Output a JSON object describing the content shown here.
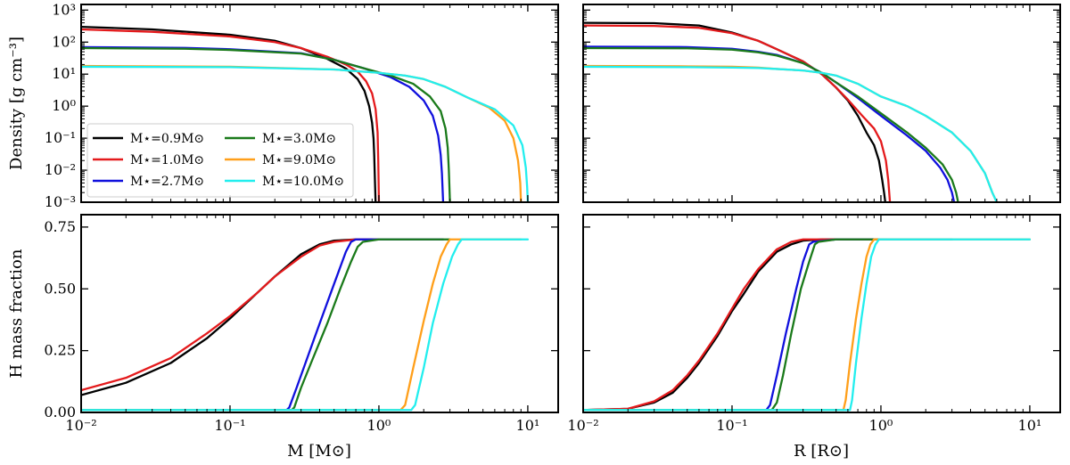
{
  "chart_data": {
    "type": "line",
    "legend": {
      "placement": "lower-left of top-left panel",
      "entries": [
        {
          "text": "M⋆=0.9M⊙",
          "color": "#000000"
        },
        {
          "text": "M⋆=1.0M⊙",
          "color": "#e41a1c"
        },
        {
          "text": "M⋆=2.7M⊙",
          "color": "#1010dd"
        },
        {
          "text": "M⋆=3.0M⊙",
          "color": "#1a7a1a"
        },
        {
          "text": "M⋆=9.0M⊙",
          "color": "#ff9f1a"
        },
        {
          "text": "M⋆=10.0M⊙",
          "color": "#22eeee"
        }
      ]
    },
    "x_axes": [
      {
        "label": "M [M⊙]",
        "scale": "log",
        "xlim": [
          0.01,
          16
        ],
        "tick_labels": [
          "10⁻²",
          "10⁻¹",
          "10⁰",
          "10¹"
        ]
      },
      {
        "label": "R [R⊙]",
        "scale": "log",
        "xlim": [
          0.01,
          16
        ],
        "tick_labels": [
          "10⁻²",
          "10⁻¹",
          "10⁰",
          "10¹"
        ]
      }
    ],
    "y_axes": [
      {
        "label": "Density [g cm⁻³]",
        "scale": "log",
        "ylim": [
          0.001,
          1500
        ],
        "tick_labels": [
          "10³",
          "10²",
          "10¹",
          "10⁰",
          "10⁻¹",
          "10⁻²",
          "10⁻³"
        ]
      },
      {
        "label": "H mass fraction",
        "scale": "linear",
        "ylim": [
          0,
          0.8
        ],
        "tick_labels": [
          "0.75",
          "0.50",
          "0.25",
          "0.00"
        ]
      }
    ],
    "panels": [
      {
        "name": "density-vs-mass",
        "series": [
          {
            "name": "M⋆=0.9M⊙",
            "x": [
              0.01,
              0.03,
              0.1,
              0.2,
              0.3,
              0.45,
              0.6,
              0.72,
              0.8,
              0.86,
              0.9,
              0.92,
              0.93,
              0.94,
              0.95
            ],
            "y": [
              300,
              250,
              170,
              110,
              65,
              30,
              15,
              7,
              3,
              1,
              0.3,
              0.1,
              0.03,
              0.005,
              0.001
            ]
          },
          {
            "name": "M⋆=1.0M⊙",
            "x": [
              0.01,
              0.03,
              0.1,
              0.2,
              0.3,
              0.45,
              0.6,
              0.72,
              0.82,
              0.9,
              0.95,
              0.98,
              0.99,
              1.0
            ],
            "y": [
              250,
              210,
              150,
              100,
              65,
              35,
              20,
              12,
              6,
              2.5,
              0.8,
              0.15,
              0.02,
              0.001
            ]
          },
          {
            "name": "M⋆=2.7M⊙",
            "x": [
              0.01,
              0.05,
              0.1,
              0.3,
              0.5,
              0.8,
              1.2,
              1.6,
              2.0,
              2.3,
              2.5,
              2.6,
              2.65,
              2.7
            ],
            "y": [
              70,
              66,
              60,
              45,
              28,
              15,
              8,
              4,
              1.5,
              0.5,
              0.12,
              0.03,
              0.008,
              0.001
            ]
          },
          {
            "name": "M⋆=3.0M⊙",
            "x": [
              0.01,
              0.05,
              0.1,
              0.3,
              0.5,
              0.8,
              1.2,
              1.7,
              2.2,
              2.6,
              2.8,
              2.9,
              2.95,
              3.0
            ],
            "y": [
              65,
              62,
              57,
              44,
              28,
              15,
              9,
              5,
              2,
              0.7,
              0.2,
              0.05,
              0.01,
              0.001
            ]
          },
          {
            "name": "M⋆=9.0M⊙",
            "x": [
              0.01,
              0.1,
              0.5,
              1.0,
              1.5,
              2.0,
              2.8,
              4.0,
              5.5,
              7.0,
              8.0,
              8.6,
              8.9,
              9.0
            ],
            "y": [
              18,
              17,
              14,
              11,
              9,
              7,
              4,
              1.8,
              0.9,
              0.35,
              0.1,
              0.02,
              0.004,
              0.001
            ]
          },
          {
            "name": "M⋆=10.0M⊙",
            "x": [
              0.01,
              0.1,
              0.5,
              1.0,
              1.5,
              2.0,
              2.8,
              4.0,
              6.0,
              8.0,
              9.2,
              9.7,
              9.9,
              10.0
            ],
            "y": [
              17,
              16.5,
              14,
              11,
              9,
              7,
              4,
              1.8,
              0.8,
              0.25,
              0.06,
              0.012,
              0.003,
              0.001
            ]
          }
        ]
      },
      {
        "name": "density-vs-radius",
        "series": [
          {
            "name": "M⋆=0.9M⊙",
            "x": [
              0.01,
              0.03,
              0.06,
              0.1,
              0.15,
              0.2,
              0.3,
              0.4,
              0.5,
              0.6,
              0.7,
              0.8,
              0.9,
              0.97,
              1.02,
              1.05,
              1.07
            ],
            "y": [
              400,
              390,
              330,
              200,
              110,
              60,
              25,
              10,
              3.8,
              1.5,
              0.5,
              0.15,
              0.06,
              0.02,
              0.005,
              0.002,
              0.001
            ]
          },
          {
            "name": "M⋆=1.0M⊙",
            "x": [
              0.01,
              0.03,
              0.06,
              0.1,
              0.15,
              0.2,
              0.3,
              0.4,
              0.5,
              0.6,
              0.75,
              0.9,
              1.0,
              1.08,
              1.12,
              1.15
            ],
            "y": [
              330,
              320,
              280,
              190,
              110,
              60,
              25,
              10,
              3.8,
              1.6,
              0.5,
              0.2,
              0.08,
              0.02,
              0.005,
              0.001
            ]
          },
          {
            "name": "M⋆=2.7M⊙",
            "x": [
              0.01,
              0.05,
              0.1,
              0.15,
              0.2,
              0.3,
              0.4,
              0.5,
              0.7,
              1.0,
              1.5,
              2.0,
              2.5,
              2.8,
              3.0,
              3.1
            ],
            "y": [
              72,
              70,
              62,
              50,
              40,
              22,
              11,
              5.5,
              1.8,
              0.5,
              0.12,
              0.04,
              0.012,
              0.005,
              0.002,
              0.001
            ]
          },
          {
            "name": "M⋆=3.0M⊙",
            "x": [
              0.01,
              0.05,
              0.1,
              0.15,
              0.2,
              0.3,
              0.4,
              0.5,
              0.7,
              1.0,
              1.5,
              2.0,
              2.6,
              3.0,
              3.2,
              3.3
            ],
            "y": [
              65,
              64,
              58,
              48,
              38,
              22,
              11,
              5.5,
              2.0,
              0.6,
              0.15,
              0.05,
              0.015,
              0.005,
              0.002,
              0.001
            ]
          },
          {
            "name": "M⋆=9.0M⊙",
            "x": [
              0.01,
              0.05,
              0.1,
              0.15,
              0.2,
              0.3,
              0.4,
              0.5,
              0.7,
              1.0,
              1.5,
              2.0,
              3.0,
              4.0,
              5.0,
              5.6,
              6.0
            ],
            "y": [
              18,
              17.5,
              17,
              16,
              14.5,
              13,
              11,
              9,
              5,
              2,
              1.0,
              0.5,
              0.15,
              0.04,
              0.008,
              0.002,
              0.001
            ]
          },
          {
            "name": "M⋆=10.0M⊙",
            "x": [
              0.01,
              0.05,
              0.1,
              0.15,
              0.2,
              0.3,
              0.4,
              0.5,
              0.7,
              1.0,
              1.5,
              2.0,
              3.0,
              4.0,
              5.0,
              5.6,
              6.0
            ],
            "y": [
              17,
              16.5,
              16,
              15.5,
              14.5,
              13,
              11,
              9,
              5,
              2,
              1.0,
              0.5,
              0.15,
              0.04,
              0.008,
              0.002,
              0.001
            ]
          }
        ]
      },
      {
        "name": "hfrac-vs-mass",
        "series": [
          {
            "name": "M⋆=0.9M⊙",
            "x": [
              0.01,
              0.02,
              0.04,
              0.07,
              0.1,
              0.15,
              0.2,
              0.3,
              0.4,
              0.5,
              0.7,
              0.9
            ],
            "y": [
              0.07,
              0.12,
              0.2,
              0.3,
              0.38,
              0.48,
              0.55,
              0.64,
              0.68,
              0.695,
              0.7,
              0.7
            ]
          },
          {
            "name": "M⋆=1.0M⊙",
            "x": [
              0.01,
              0.02,
              0.04,
              0.07,
              0.1,
              0.15,
              0.2,
              0.3,
              0.4,
              0.5,
              0.7,
              1.0
            ],
            "y": [
              0.09,
              0.14,
              0.22,
              0.32,
              0.39,
              0.48,
              0.55,
              0.63,
              0.675,
              0.69,
              0.7,
              0.7
            ]
          },
          {
            "name": "M⋆=2.7M⊙",
            "x": [
              0.01,
              0.24,
              0.25,
              0.28,
              0.33,
              0.4,
              0.5,
              0.6,
              0.65,
              0.7,
              1.0,
              1.5,
              2.0,
              2.7
            ],
            "y": [
              0.01,
              0.01,
              0.02,
              0.1,
              0.22,
              0.36,
              0.52,
              0.65,
              0.69,
              0.7,
              0.7,
              0.7,
              0.7,
              0.7
            ]
          },
          {
            "name": "M⋆=3.0M⊙",
            "x": [
              0.01,
              0.26,
              0.27,
              0.3,
              0.35,
              0.45,
              0.55,
              0.65,
              0.72,
              0.78,
              1.0,
              1.5,
              2.0,
              3.0
            ],
            "y": [
              0.01,
              0.01,
              0.02,
              0.1,
              0.2,
              0.36,
              0.5,
              0.61,
              0.67,
              0.69,
              0.7,
              0.7,
              0.7,
              0.7
            ]
          },
          {
            "name": "M⋆=9.0M⊙",
            "x": [
              0.01,
              1.4,
              1.5,
              1.7,
              2.0,
              2.3,
              2.6,
              2.85,
              3.0,
              5.0,
              9.0
            ],
            "y": [
              0.01,
              0.01,
              0.03,
              0.18,
              0.37,
              0.52,
              0.63,
              0.68,
              0.7,
              0.7,
              0.7
            ]
          },
          {
            "name": "M⋆=10.0M⊙",
            "x": [
              0.01,
              1.65,
              1.75,
              2.0,
              2.3,
              2.7,
              3.1,
              3.4,
              3.6,
              6.0,
              10.0
            ],
            "y": [
              0.01,
              0.01,
              0.03,
              0.18,
              0.36,
              0.52,
              0.63,
              0.68,
              0.7,
              0.7,
              0.7
            ]
          }
        ]
      },
      {
        "name": "hfrac-vs-radius",
        "series": [
          {
            "name": "M⋆=0.9M⊙",
            "x": [
              0.01,
              0.02,
              0.03,
              0.04,
              0.05,
              0.06,
              0.08,
              0.1,
              0.12,
              0.15,
              0.2,
              0.25,
              0.3,
              0.4,
              0.6,
              1.0
            ],
            "y": [
              0.01,
              0.015,
              0.04,
              0.08,
              0.14,
              0.2,
              0.31,
              0.41,
              0.48,
              0.57,
              0.65,
              0.68,
              0.695,
              0.7,
              0.7,
              0.7
            ]
          },
          {
            "name": "M⋆=1.0M⊙",
            "x": [
              0.01,
              0.02,
              0.03,
              0.04,
              0.05,
              0.06,
              0.08,
              0.1,
              0.12,
              0.15,
              0.2,
              0.25,
              0.3,
              0.4,
              0.6,
              1.1
            ],
            "y": [
              0.01,
              0.015,
              0.045,
              0.09,
              0.15,
              0.21,
              0.32,
              0.42,
              0.5,
              0.58,
              0.66,
              0.69,
              0.7,
              0.7,
              0.7,
              0.7
            ]
          },
          {
            "name": "M⋆=2.7M⊙",
            "x": [
              0.01,
              0.17,
              0.18,
              0.2,
              0.23,
              0.27,
              0.3,
              0.33,
              0.35,
              0.5,
              1.0,
              2.0,
              3.0
            ],
            "y": [
              0.01,
              0.01,
              0.03,
              0.15,
              0.32,
              0.5,
              0.61,
              0.68,
              0.69,
              0.7,
              0.7,
              0.7,
              0.7
            ]
          },
          {
            "name": "M⋆=3.0M⊙",
            "x": [
              0.01,
              0.185,
              0.2,
              0.22,
              0.25,
              0.29,
              0.33,
              0.36,
              0.38,
              0.5,
              1.0,
              2.0,
              3.0
            ],
            "y": [
              0.01,
              0.01,
              0.04,
              0.15,
              0.32,
              0.5,
              0.61,
              0.68,
              0.69,
              0.7,
              0.7,
              0.7,
              0.7
            ]
          },
          {
            "name": "M⋆=9.0M⊙",
            "x": [
              0.01,
              0.56,
              0.58,
              0.62,
              0.68,
              0.74,
              0.8,
              0.85,
              0.9,
              1.5,
              5.0,
              10.0
            ],
            "y": [
              0.01,
              0.01,
              0.05,
              0.2,
              0.38,
              0.52,
              0.63,
              0.68,
              0.7,
              0.7,
              0.7,
              0.7
            ]
          },
          {
            "name": "M⋆=10.0M⊙",
            "x": [
              0.01,
              0.62,
              0.64,
              0.68,
              0.74,
              0.8,
              0.86,
              0.92,
              0.97,
              1.5,
              5.0,
              10.0
            ],
            "y": [
              0.01,
              0.01,
              0.05,
              0.2,
              0.38,
              0.52,
              0.63,
              0.68,
              0.7,
              0.7,
              0.7,
              0.7
            ]
          }
        ]
      }
    ]
  }
}
